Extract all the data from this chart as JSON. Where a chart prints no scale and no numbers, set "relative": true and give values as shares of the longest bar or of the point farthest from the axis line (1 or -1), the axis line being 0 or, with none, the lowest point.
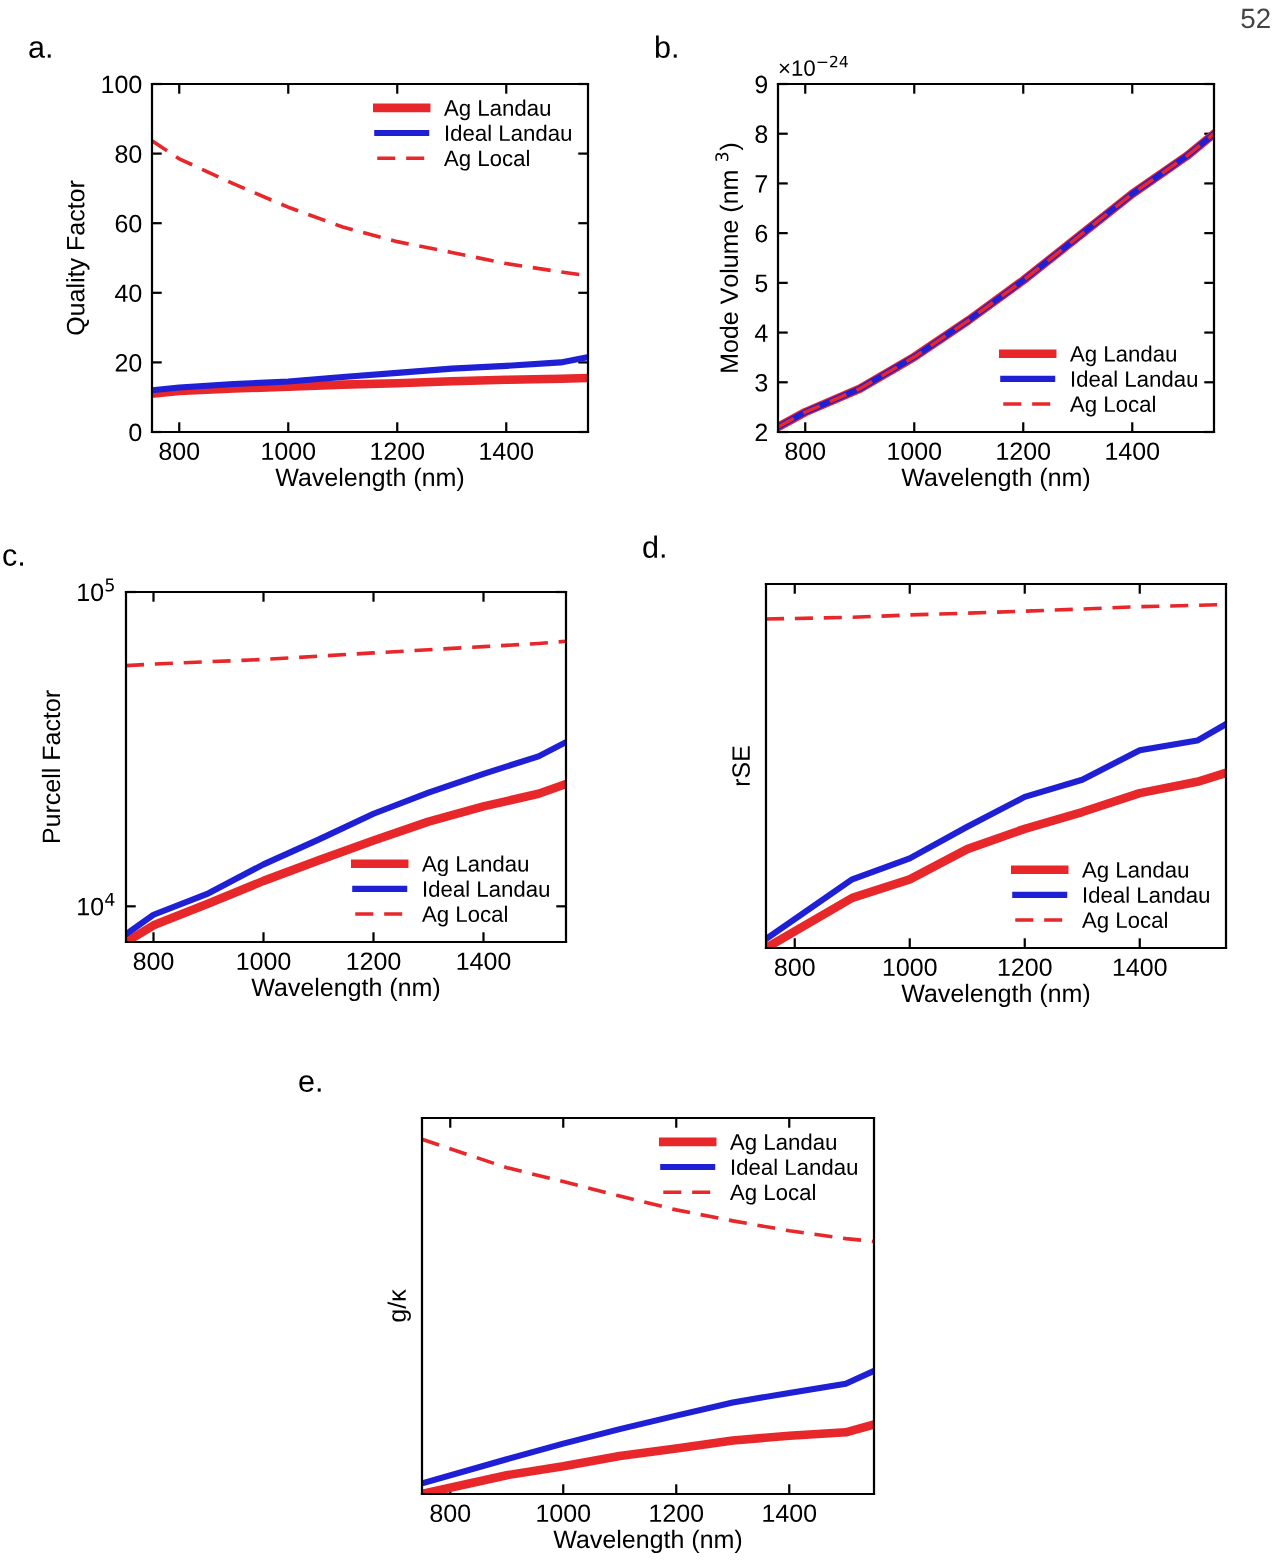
{
  "chart_data": [
    {
      "type": "line",
      "title": "a.",
      "xlabel": "Wavelength (nm)",
      "ylabel": "Quality Factor",
      "xlim": [
        750,
        1550
      ],
      "xticks": [
        800,
        1000,
        1200,
        1400
      ],
      "ylim": [
        0,
        100
      ],
      "yticks": [
        0,
        20,
        40,
        60,
        80,
        100
      ],
      "grid": false,
      "legend": "top right",
      "x": [
        750,
        800,
        900,
        1000,
        1100,
        1200,
        1300,
        1400,
        1500,
        1550
      ],
      "series": [
        {
          "name": "Ag Landau",
          "color": "#e8272a",
          "line_style": "solid",
          "values": [
            11,
            11.8,
            12.5,
            13,
            13.6,
            14,
            14.6,
            15,
            15.3,
            15.5
          ]
        },
        {
          "name": "Ideal Landau",
          "color": "#1f1fd6",
          "line_style": "solid",
          "values": [
            12,
            12.8,
            13.8,
            14.5,
            15.8,
            17,
            18.2,
            19,
            20,
            21.5
          ]
        },
        {
          "name": "Ag Local",
          "color": "#e8272a",
          "line_style": "dashed",
          "values": [
            83.7,
            78.5,
            71.3,
            64.6,
            58.9,
            54.7,
            51.6,
            48.4,
            46,
            44.9
          ]
        }
      ]
    },
    {
      "type": "line",
      "title": "b.",
      "xlabel": "Wavelength (nm)",
      "ylabel": "Mode Volume (nm $^{3}$)",
      "xlim": [
        750,
        1550
      ],
      "xticks": [
        800,
        1000,
        1200,
        1400
      ],
      "ylim": [
        2,
        9
      ],
      "yticks": [
        2,
        3,
        4,
        5,
        6,
        7,
        8,
        9
      ],
      "grid": false,
      "legend": "bottom right",
      "annotations": [
        "×10$^{−24}$",
        "52"
      ],
      "x": [
        750,
        800,
        900,
        1000,
        1100,
        1200,
        1300,
        1400,
        1500,
        1550
      ],
      "series": [
        {
          "name": "Ag Landau",
          "color": "#e8272a",
          "line_style": "solid",
          "values": [
            2.1,
            2.4,
            2.87,
            3.51,
            4.25,
            5.05,
            5.92,
            6.79,
            7.55,
            8.0
          ]
        },
        {
          "name": "Ideal Landau",
          "color": "#1f1fd6",
          "line_style": "solid",
          "values": [
            2.1,
            2.4,
            2.87,
            3.51,
            4.25,
            5.05,
            5.92,
            6.79,
            7.55,
            8.0
          ]
        },
        {
          "name": "Ag Local",
          "color": "#e8272a",
          "line_style": "dashed",
          "values": [
            2.1,
            2.4,
            2.87,
            3.51,
            4.25,
            5.05,
            5.92,
            6.79,
            7.55,
            8.0
          ]
        }
      ]
    },
    {
      "type": "line",
      "title": "c.",
      "xlabel": "Wavelength (nm)",
      "ylabel": "Purcell Factor",
      "log": "y",
      "xlim": [
        750,
        1550
      ],
      "xticks": [
        800,
        1000,
        1200,
        1400
      ],
      "ylim": [
        7700,
        100000
      ],
      "yticks": [
        {
          "value": 10000,
          "label": "10$^{4}$"
        },
        {
          "value": 100000,
          "label": "10$^{5}$"
        }
      ],
      "grid": false,
      "legend": "bottom right",
      "x": [
        750,
        800,
        900,
        1000,
        1100,
        1200,
        1300,
        1400,
        1500,
        1550
      ],
      "series": [
        {
          "name": "Ag Landau",
          "color": "#e8272a",
          "line_style": "solid",
          "values": [
            7700,
            8700,
            10200,
            12050,
            14000,
            16200,
            18600,
            20800,
            22800,
            24500
          ]
        },
        {
          "name": "Ideal Landau",
          "color": "#1f1fd6",
          "line_style": "solid",
          "values": [
            8150,
            9400,
            11000,
            13600,
            16300,
            19700,
            23000,
            26400,
            30000,
            33300
          ]
        },
        {
          "name": "Ag Local",
          "color": "#e8272a",
          "line_style": "dashed",
          "values": [
            58300,
            59000,
            60000,
            61000,
            62500,
            64000,
            65500,
            67000,
            68600,
            69700
          ]
        }
      ]
    },
    {
      "type": "line",
      "title": "d.",
      "xlabel": "Wavelength (nm)",
      "ylabel": "rSE",
      "relative": true,
      "xlim": [
        750,
        1550
      ],
      "xticks": [
        800,
        1000,
        1200,
        1400
      ],
      "grid": false,
      "legend": "bottom right",
      "x": [
        750,
        900,
        1000,
        1100,
        1200,
        1300,
        1400,
        1500,
        1550
      ],
      "series": [
        {
          "name": "Ag Landau",
          "color": "#e8272a",
          "line_style": "solid",
          "values": [
            0,
            0.146,
            0.2,
            0.288,
            0.347,
            0.396,
            0.451,
            0.484,
            0.51
          ]
        },
        {
          "name": "Ideal Landau",
          "color": "#1f1fd6",
          "line_style": "solid",
          "values": [
            0.026,
            0.2,
            0.261,
            0.353,
            0.44,
            0.49,
            0.576,
            0.604,
            0.652
          ]
        },
        {
          "name": "Ag Local",
          "color": "#e8272a",
          "line_style": "dashed",
          "values": [
            0.958,
            0.963,
            0.97,
            0.975,
            0.981,
            0.987,
            0.994,
            0.998,
            1
          ]
        }
      ]
    },
    {
      "type": "line",
      "title": "e.",
      "xlabel": "Wavelength (nm)",
      "ylabel": "g/κ",
      "relative": true,
      "xlim": [
        750,
        1550
      ],
      "xticks": [
        800,
        1000,
        1200,
        1400
      ],
      "grid": false,
      "legend": "top right",
      "x": [
        750,
        900,
        1000,
        1100,
        1200,
        1300,
        1400,
        1500,
        1550
      ],
      "series": [
        {
          "name": "Ag Landau",
          "color": "#e8272a",
          "line_style": "solid",
          "values": [
            0,
            0.053,
            0.078,
            0.107,
            0.128,
            0.151,
            0.164,
            0.174,
            0.196
          ]
        },
        {
          "name": "Ideal Landau",
          "color": "#1f1fd6",
          "line_style": "solid",
          "values": [
            0.03,
            0.098,
            0.142,
            0.183,
            0.221,
            0.258,
            0.285,
            0.311,
            0.347
          ]
        },
        {
          "name": "Ag Local",
          "color": "#e8272a",
          "line_style": "dashed",
          "values": [
            1,
            0.92,
            0.881,
            0.84,
            0.801,
            0.77,
            0.742,
            0.72,
            0.712
          ]
        }
      ]
    }
  ]
}
